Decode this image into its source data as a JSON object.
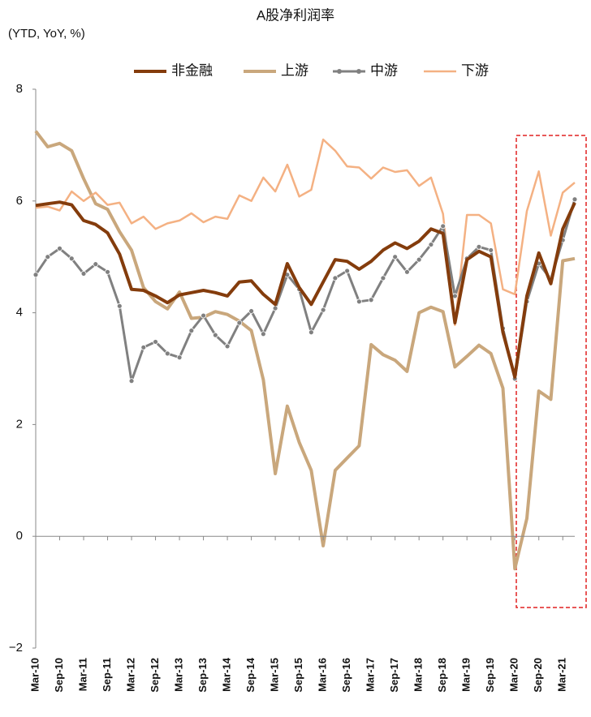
{
  "chart_data": {
    "type": "line",
    "title": "A股净利润率",
    "subtitle": "(YTD, YoY, %)",
    "categories": [
      "Mar-10",
      null,
      "Sep-10",
      null,
      "Mar-11",
      null,
      "Sep-11",
      null,
      "Mar-12",
      null,
      "Sep-12",
      null,
      "Mar-13",
      null,
      "Sep-13",
      null,
      "Mar-14",
      null,
      "Sep-14",
      null,
      "Mar-15",
      null,
      "Sep-15",
      null,
      "Mar-16",
      null,
      "Sep-16",
      null,
      "Mar-17",
      null,
      "Sep-17",
      null,
      "Mar-18",
      null,
      "Sep-18",
      null,
      "Mar-19",
      null,
      "Sep-19",
      null,
      "Mar-20",
      null,
      "Sep-20",
      null,
      "Mar-21",
      null
    ],
    "series": [
      {
        "name": "非金融",
        "color": "#843c0c",
        "width": 4,
        "marker": false,
        "values": [
          5.92,
          5.95,
          5.98,
          5.93,
          5.65,
          5.58,
          5.43,
          5.05,
          4.42,
          4.4,
          4.3,
          4.18,
          4.32,
          4.36,
          4.4,
          4.36,
          4.3,
          4.55,
          4.57,
          4.33,
          4.15,
          4.88,
          4.45,
          4.15,
          4.55,
          4.95,
          4.92,
          4.78,
          4.92,
          5.12,
          5.25,
          5.15,
          5.28,
          5.5,
          5.42,
          3.82,
          4.95,
          5.1,
          5.0,
          3.65,
          2.85,
          4.3,
          5.07,
          4.52,
          5.5,
          5.97
        ]
      },
      {
        "name": "上游",
        "color": "#c9a77c",
        "width": 4,
        "marker": false,
        "values": [
          7.25,
          6.97,
          7.03,
          6.9,
          6.4,
          5.95,
          5.85,
          5.45,
          5.12,
          4.45,
          4.2,
          4.07,
          4.37,
          3.9,
          3.92,
          4.02,
          3.97,
          3.85,
          3.68,
          2.8,
          1.12,
          2.33,
          1.68,
          1.18,
          -0.17,
          1.18,
          1.4,
          1.62,
          3.43,
          3.25,
          3.15,
          2.95,
          4.0,
          4.1,
          4.02,
          3.03,
          3.22,
          3.42,
          3.27,
          2.65,
          -0.58,
          0.32,
          2.6,
          2.45,
          4.93,
          4.97
        ]
      },
      {
        "name": "中游",
        "color": "#808080",
        "width": 3,
        "marker": true,
        "values": [
          4.68,
          5.0,
          5.15,
          4.97,
          4.7,
          4.87,
          4.73,
          4.12,
          2.78,
          3.38,
          3.48,
          3.27,
          3.2,
          3.68,
          3.95,
          3.6,
          3.4,
          3.82,
          4.03,
          3.62,
          4.08,
          4.68,
          4.42,
          3.65,
          4.05,
          4.62,
          4.75,
          4.2,
          4.23,
          4.62,
          5.0,
          4.73,
          4.95,
          5.22,
          5.55,
          4.3,
          4.97,
          5.18,
          5.12,
          3.72,
          2.82,
          4.2,
          4.88,
          4.6,
          5.3,
          6.03
        ]
      },
      {
        "name": "下游",
        "color": "#f4b183",
        "width": 2.5,
        "marker": false,
        "values": [
          5.88,
          5.9,
          5.83,
          6.17,
          6.0,
          6.15,
          5.93,
          5.97,
          5.6,
          5.72,
          5.5,
          5.6,
          5.65,
          5.78,
          5.62,
          5.72,
          5.68,
          6.1,
          6.0,
          6.42,
          6.17,
          6.65,
          6.08,
          6.2,
          7.1,
          6.9,
          6.62,
          6.6,
          6.4,
          6.6,
          6.52,
          6.55,
          6.27,
          6.42,
          5.77,
          3.78,
          5.75,
          5.75,
          5.6,
          4.42,
          4.33,
          5.82,
          6.53,
          5.38,
          6.15,
          6.33
        ]
      }
    ],
    "ylim": [
      -2,
      8
    ],
    "yticks": [
      {
        "value": -2,
        "label": "−2"
      },
      0,
      2,
      4,
      6,
      8
    ],
    "grid": false
  }
}
